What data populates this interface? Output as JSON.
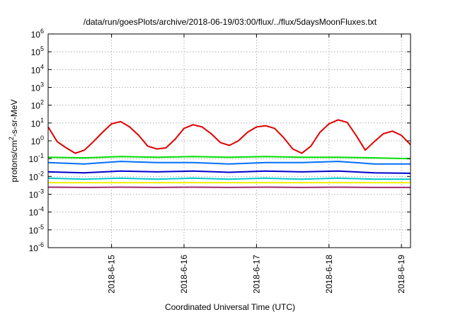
{
  "chart_data": {
    "type": "line",
    "title": "/data/run/goesPlots/archive/2018-06-19/03:00/flux/../flux/5daysMoonFluxes.txt",
    "xlabel": "Coordinated Universal Time (UTC)",
    "ylabel_parts": [
      "protons/cm",
      "2",
      "-s-sr-MeV"
    ],
    "yscale": "log",
    "ylim": [
      1e-06,
      1000000.0
    ],
    "y_ticks": [
      {
        "base": "10",
        "exp": "-6",
        "value": 1e-06
      },
      {
        "base": "10",
        "exp": "-5",
        "value": 1e-05
      },
      {
        "base": "10",
        "exp": "-4",
        "value": 0.0001
      },
      {
        "base": "10",
        "exp": "-3",
        "value": 0.001
      },
      {
        "base": "10",
        "exp": "-2",
        "value": 0.01
      },
      {
        "base": "10",
        "exp": "-1",
        "value": 0.1
      },
      {
        "base": "10",
        "exp": "0",
        "value": 1
      },
      {
        "base": "10",
        "exp": "1",
        "value": 10
      },
      {
        "base": "10",
        "exp": "2",
        "value": 100
      },
      {
        "base": "10",
        "exp": "3",
        "value": 1000
      },
      {
        "base": "10",
        "exp": "4",
        "value": 10000
      },
      {
        "base": "10",
        "exp": "5",
        "value": 100000
      },
      {
        "base": "10",
        "exp": "6",
        "value": 1000000
      }
    ],
    "xlim": [
      "2018-06-14 03:00",
      "2018-06-19 03:00"
    ],
    "x_ticks": [
      "2018-6-15",
      "2018-6-16",
      "2018-6-17",
      "2018-6-18",
      "2018-6-19"
    ],
    "grid": true,
    "series": [
      {
        "color": "#e00000",
        "x": [
          "2018-06-14 03:00",
          "2018-06-14 06:00",
          "2018-06-14 09:00",
          "2018-06-14 12:00",
          "2018-06-14 15:00",
          "2018-06-14 18:00",
          "2018-06-14 21:00",
          "2018-06-15 00:00",
          "2018-06-15 03:00",
          "2018-06-15 06:00",
          "2018-06-15 09:00",
          "2018-06-15 12:00",
          "2018-06-15 15:00",
          "2018-06-15 18:00",
          "2018-06-15 21:00",
          "2018-06-16 00:00",
          "2018-06-16 03:00",
          "2018-06-16 06:00",
          "2018-06-16 09:00",
          "2018-06-16 12:00",
          "2018-06-16 15:00",
          "2018-06-16 18:00",
          "2018-06-16 21:00",
          "2018-06-17 00:00",
          "2018-06-17 03:00",
          "2018-06-17 06:00",
          "2018-06-17 09:00",
          "2018-06-17 12:00",
          "2018-06-17 15:00",
          "2018-06-17 18:00",
          "2018-06-17 21:00",
          "2018-06-18 00:00",
          "2018-06-18 03:00",
          "2018-06-18 06:00",
          "2018-06-18 09:00",
          "2018-06-18 12:00",
          "2018-06-18 15:00",
          "2018-06-18 18:00",
          "2018-06-18 21:00",
          "2018-06-19 00:00",
          "2018-06-19 03:00"
        ],
        "values": [
          6,
          0.9,
          0.4,
          0.2,
          0.3,
          0.9,
          3,
          9,
          12,
          6,
          2,
          0.5,
          0.35,
          0.4,
          1.2,
          5,
          8,
          6,
          2.5,
          0.8,
          0.55,
          1,
          3,
          6,
          7,
          5,
          1.5,
          0.35,
          0.2,
          0.5,
          3,
          9,
          15,
          11,
          2,
          0.3,
          0.9,
          2.5,
          3.5,
          2,
          0.6
        ]
      },
      {
        "color": "#00e000",
        "x": [
          "2018-06-14 03:00",
          "2018-06-14 15:00",
          "2018-06-15 03:00",
          "2018-06-15 15:00",
          "2018-06-16 03:00",
          "2018-06-16 15:00",
          "2018-06-17 03:00",
          "2018-06-17 15:00",
          "2018-06-18 03:00",
          "2018-06-18 15:00",
          "2018-06-19 03:00"
        ],
        "values": [
          0.12,
          0.11,
          0.13,
          0.12,
          0.13,
          0.12,
          0.13,
          0.12,
          0.12,
          0.11,
          0.1
        ]
      },
      {
        "color": "#0070ff",
        "x": [
          "2018-06-14 03:00",
          "2018-06-14 15:00",
          "2018-06-15 03:00",
          "2018-06-15 15:00",
          "2018-06-16 03:00",
          "2018-06-16 15:00",
          "2018-06-17 03:00",
          "2018-06-17 15:00",
          "2018-06-18 03:00",
          "2018-06-18 15:00",
          "2018-06-19 03:00"
        ],
        "values": [
          0.06,
          0.05,
          0.07,
          0.06,
          0.06,
          0.05,
          0.06,
          0.06,
          0.07,
          0.05,
          0.05
        ]
      },
      {
        "color": "#0000d0",
        "x": [
          "2018-06-14 03:00",
          "2018-06-14 15:00",
          "2018-06-15 03:00",
          "2018-06-15 15:00",
          "2018-06-16 03:00",
          "2018-06-16 15:00",
          "2018-06-17 03:00",
          "2018-06-17 15:00",
          "2018-06-18 03:00",
          "2018-06-18 15:00",
          "2018-06-19 03:00"
        ],
        "values": [
          0.018,
          0.016,
          0.02,
          0.018,
          0.02,
          0.017,
          0.02,
          0.018,
          0.02,
          0.016,
          0.015
        ]
      },
      {
        "color": "#00c8c8",
        "x": [
          "2018-06-14 03:00",
          "2018-06-14 15:00",
          "2018-06-15 03:00",
          "2018-06-15 15:00",
          "2018-06-16 03:00",
          "2018-06-16 15:00",
          "2018-06-17 03:00",
          "2018-06-17 15:00",
          "2018-06-18 03:00",
          "2018-06-18 15:00",
          "2018-06-19 03:00"
        ],
        "values": [
          0.008,
          0.007,
          0.008,
          0.007,
          0.008,
          0.007,
          0.008,
          0.007,
          0.008,
          0.007,
          0.007
        ]
      },
      {
        "color": "#f0f000",
        "x": [
          "2018-06-14 03:00",
          "2018-06-14 15:00",
          "2018-06-15 03:00",
          "2018-06-15 15:00",
          "2018-06-16 03:00",
          "2018-06-16 15:00",
          "2018-06-17 03:00",
          "2018-06-17 15:00",
          "2018-06-18 03:00",
          "2018-06-18 15:00",
          "2018-06-19 03:00"
        ],
        "values": [
          0.0045,
          0.0045,
          0.0045,
          0.0045,
          0.0045,
          0.0045,
          0.0045,
          0.0045,
          0.0045,
          0.0045,
          0.0045
        ]
      },
      {
        "color": "#a02870",
        "x": [
          "2018-06-14 03:00",
          "2018-06-14 15:00",
          "2018-06-15 03:00",
          "2018-06-15 15:00",
          "2018-06-16 03:00",
          "2018-06-16 15:00",
          "2018-06-17 03:00",
          "2018-06-17 15:00",
          "2018-06-18 03:00",
          "2018-06-18 15:00",
          "2018-06-19 03:00"
        ],
        "values": [
          0.0025,
          0.0024,
          0.0025,
          0.0024,
          0.0025,
          0.0024,
          0.0025,
          0.0024,
          0.0025,
          0.0024,
          0.0024
        ]
      }
    ]
  }
}
